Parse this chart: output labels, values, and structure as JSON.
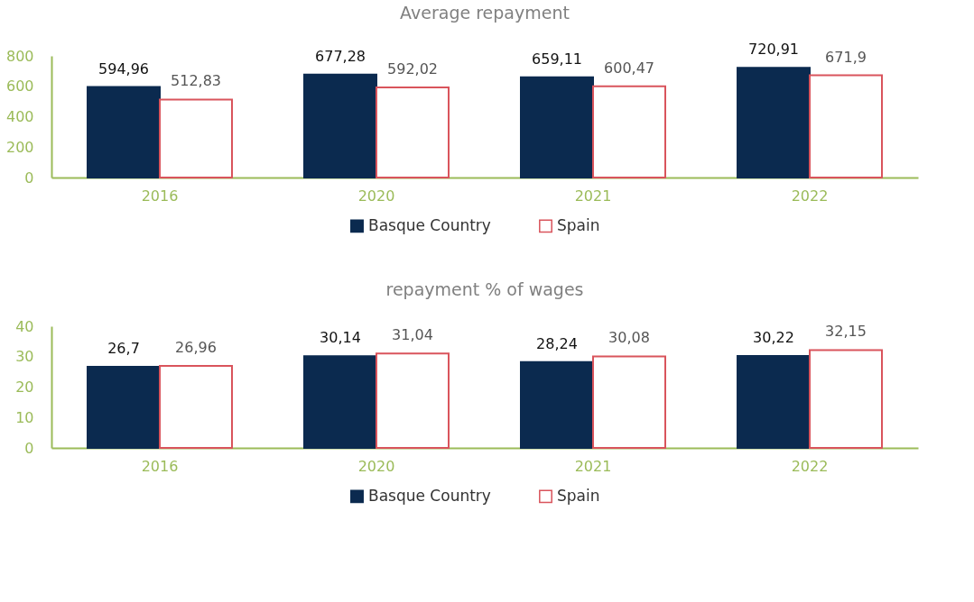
{
  "chart_data": [
    {
      "type": "bar",
      "title": "Average repayment",
      "categories": [
        "2016",
        "2020",
        "2021",
        "2022"
      ],
      "ylim": [
        0,
        800
      ],
      "yticks": [
        0,
        200,
        400,
        600,
        800
      ],
      "grid": false,
      "legend": "bottom",
      "series": [
        {
          "name": "Basque Country",
          "color": "#0b2a4f",
          "values": [
            594.96,
            677.28,
            659.11,
            720.91
          ],
          "value_labels": [
            "594,96",
            "677,28",
            "659,11",
            "720,91"
          ]
        },
        {
          "name": "Spain",
          "color": "#d9545c",
          "values": [
            512.83,
            592.02,
            600.47,
            671.9
          ],
          "value_labels": [
            "512,83",
            "592,02",
            "600,47",
            "671,9"
          ]
        }
      ]
    },
    {
      "type": "bar",
      "title": "repayment % of wages",
      "categories": [
        "2016",
        "2020",
        "2021",
        "2022"
      ],
      "ylim": [
        0,
        40
      ],
      "yticks": [
        0,
        10,
        20,
        30,
        40
      ],
      "grid": false,
      "legend": "bottom",
      "series": [
        {
          "name": "Basque Country",
          "color": "#0b2a4f",
          "values": [
            26.7,
            30.14,
            28.24,
            30.22
          ],
          "value_labels": [
            "26,7",
            "30,14",
            "28,24",
            "30,22"
          ]
        },
        {
          "name": "Spain",
          "color": "#d9545c",
          "values": [
            26.96,
            31.04,
            30.08,
            32.15
          ],
          "value_labels": [
            "26,96",
            "31,04",
            "30,08",
            "32,15"
          ]
        }
      ]
    }
  ]
}
